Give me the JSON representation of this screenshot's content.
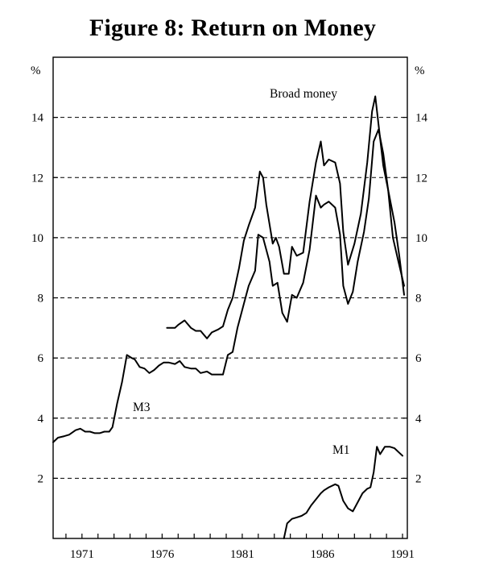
{
  "title": "Figure 8: Return on Money",
  "chart_data": {
    "type": "line",
    "title": "Figure 8: Return on Money",
    "xlabel": "",
    "ylabel": "%",
    "ylabel_right": "%",
    "xlim": [
      1969.2,
      1991.3
    ],
    "ylim": [
      0,
      16
    ],
    "x_ticks": [
      "1971",
      "1976",
      "1981",
      "1986",
      "1991"
    ],
    "y_ticks": [
      2,
      4,
      6,
      8,
      10,
      12,
      14
    ],
    "y_tick_labels": [
      "2",
      "4",
      "6",
      "8",
      "10",
      "12",
      "14"
    ],
    "grid": "dashed horizontal",
    "annotations": [
      "Broad money",
      "M3",
      "M1"
    ],
    "series": [
      {
        "name": "Broad money",
        "x": [
          1976.3,
          1976.8,
          1977.0,
          1977.4,
          1977.8,
          1978.1,
          1978.4,
          1978.8,
          1979.1,
          1979.5,
          1979.8,
          1980.1,
          1980.4,
          1980.8,
          1981.1,
          1981.4,
          1981.8,
          1982.1,
          1982.3,
          1982.5,
          1982.9,
          1983.1,
          1983.3,
          1983.6,
          1983.9,
          1984.1,
          1984.4,
          1984.8,
          1985.2,
          1985.6,
          1985.9,
          1986.1,
          1986.4,
          1986.8,
          1987.1,
          1987.3,
          1987.6,
          1988.0,
          1988.4,
          1988.8,
          1989.1,
          1989.3,
          1989.6,
          1989.8,
          1990.1,
          1990.4,
          1990.7,
          1991.1
        ],
        "values": [
          7.0,
          7.0,
          7.1,
          7.25,
          7.0,
          6.9,
          6.9,
          6.65,
          6.85,
          6.95,
          7.05,
          7.6,
          8.0,
          9.0,
          9.9,
          10.4,
          11.0,
          12.2,
          12.0,
          11.1,
          9.8,
          10.0,
          9.7,
          8.8,
          8.8,
          9.7,
          9.4,
          9.5,
          11.2,
          12.5,
          13.2,
          12.4,
          12.6,
          12.5,
          11.8,
          10.2,
          9.1,
          9.8,
          10.8,
          12.5,
          14.2,
          14.7,
          13.3,
          12.4,
          11.6,
          10.0,
          9.3,
          8.4
        ]
      },
      {
        "name": "M3",
        "x": [
          1969.2,
          1969.5,
          1969.9,
          1970.2,
          1970.6,
          1970.9,
          1971.2,
          1971.5,
          1971.8,
          1972.1,
          1972.4,
          1972.7,
          1972.9,
          1973.2,
          1973.5,
          1973.8,
          1974.1,
          1974.3,
          1974.6,
          1974.9,
          1975.2,
          1975.5,
          1975.8,
          1976.1,
          1976.4,
          1976.8,
          1977.1,
          1977.4,
          1977.8,
          1978.1,
          1978.4,
          1978.8,
          1979.1,
          1979.5,
          1979.8,
          1980.1,
          1980.4,
          1980.7,
          1981.1,
          1981.4,
          1981.8,
          1982.0,
          1982.3,
          1982.7,
          1982.9,
          1983.2,
          1983.5,
          1983.8,
          1984.1,
          1984.4,
          1984.8,
          1985.2,
          1985.6,
          1985.9,
          1986.1,
          1986.4,
          1986.8,
          1987.1,
          1987.3,
          1987.6,
          1987.9,
          1988.2,
          1988.6,
          1988.9,
          1989.2,
          1989.5,
          1989.8,
          1990.1,
          1990.5,
          1990.8,
          1991.1
        ],
        "values": [
          3.2,
          3.35,
          3.4,
          3.45,
          3.6,
          3.65,
          3.55,
          3.55,
          3.5,
          3.5,
          3.55,
          3.55,
          3.7,
          4.5,
          5.2,
          6.1,
          6.0,
          5.95,
          5.7,
          5.65,
          5.5,
          5.6,
          5.75,
          5.85,
          5.85,
          5.8,
          5.9,
          5.7,
          5.65,
          5.65,
          5.5,
          5.55,
          5.45,
          5.45,
          5.45,
          6.1,
          6.2,
          7.0,
          7.8,
          8.4,
          8.9,
          10.1,
          10.0,
          9.2,
          8.4,
          8.5,
          7.5,
          7.2,
          8.1,
          8.0,
          8.5,
          9.6,
          11.4,
          11.0,
          11.1,
          11.2,
          11.0,
          10.1,
          8.4,
          7.8,
          8.2,
          9.2,
          10.2,
          11.3,
          13.2,
          13.6,
          12.8,
          11.6,
          10.5,
          9.4,
          8.1
        ]
      },
      {
        "name": "M1",
        "x": [
          1983.6,
          1983.8,
          1984.1,
          1984.4,
          1984.7,
          1985.0,
          1985.3,
          1985.6,
          1985.9,
          1986.1,
          1986.4,
          1986.8,
          1987.0,
          1987.3,
          1987.6,
          1987.9,
          1988.1,
          1988.5,
          1988.8,
          1989.0,
          1989.2,
          1989.4,
          1989.6,
          1989.9,
          1990.2,
          1990.5,
          1990.8,
          1991.0
        ],
        "values": [
          0,
          0.5,
          0.65,
          0.7,
          0.75,
          0.85,
          1.1,
          1.3,
          1.5,
          1.6,
          1.7,
          1.8,
          1.75,
          1.25,
          1.0,
          0.9,
          1.1,
          1.5,
          1.65,
          1.7,
          2.2,
          3.05,
          2.8,
          3.05,
          3.05,
          3.0,
          2.85,
          2.75
        ]
      }
    ]
  }
}
